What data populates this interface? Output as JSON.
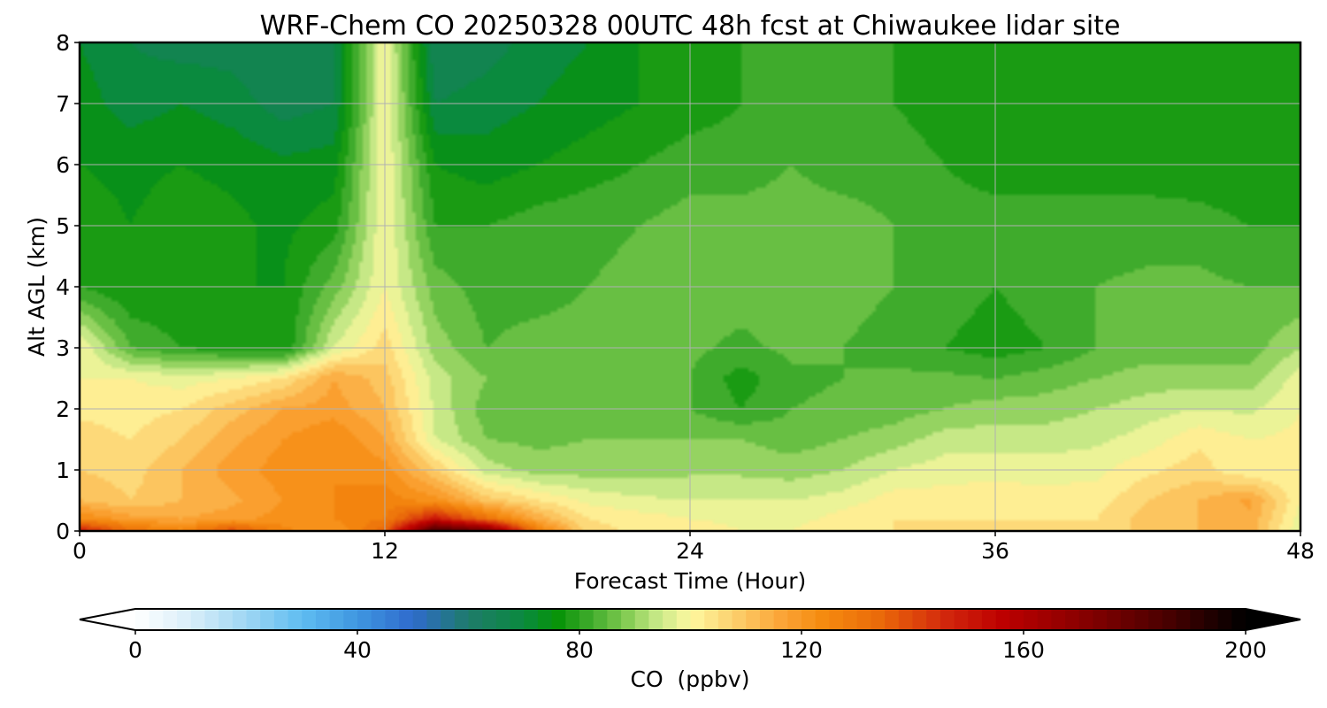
{
  "chart_data": {
    "type": "heatmap",
    "subtype": "filled contour time-height cross section",
    "title": "WRF-Chem CO  20250328 00UTC 48h fcst at Chiwaukee lidar site",
    "xlabel": "Forecast Time (Hour)",
    "ylabel": "Alt AGL (km)",
    "xlim": [
      0,
      48
    ],
    "ylim": [
      0,
      8
    ],
    "xticks": [
      "0",
      "12",
      "24",
      "36",
      "48"
    ],
    "yticks": [
      "0",
      "1",
      "2",
      "3",
      "4",
      "5",
      "6",
      "7",
      "8"
    ],
    "grid": true,
    "colorbar": {
      "label": "CO  (ppbv)",
      "range": [
        0,
        200
      ],
      "ticks": [
        "0",
        "40",
        "80",
        "120",
        "160",
        "200"
      ],
      "extend": "both",
      "colors": [
        {
          "value": 0,
          "color": "#ffffff"
        },
        {
          "value": 10,
          "color": "#d8eef9"
        },
        {
          "value": 20,
          "color": "#9fd6f3"
        },
        {
          "value": 30,
          "color": "#5fbdf1"
        },
        {
          "value": 40,
          "color": "#3f96e0"
        },
        {
          "value": 50,
          "color": "#2f6bcc"
        },
        {
          "value": 60,
          "color": "#1e7b6a"
        },
        {
          "value": 70,
          "color": "#0a8a3e"
        },
        {
          "value": 76,
          "color": "#079307"
        },
        {
          "value": 82,
          "color": "#3fab2c"
        },
        {
          "value": 88,
          "color": "#7dc94e"
        },
        {
          "value": 94,
          "color": "#c6e886"
        },
        {
          "value": 100,
          "color": "#fef8a0"
        },
        {
          "value": 108,
          "color": "#fccf6c"
        },
        {
          "value": 116,
          "color": "#fba639"
        },
        {
          "value": 124,
          "color": "#f58a0f"
        },
        {
          "value": 134,
          "color": "#ea6a0a"
        },
        {
          "value": 146,
          "color": "#d2270c"
        },
        {
          "value": 156,
          "color": "#bd0000"
        },
        {
          "value": 170,
          "color": "#8a0000"
        },
        {
          "value": 185,
          "color": "#4d0000"
        },
        {
          "value": 200,
          "color": "#000000"
        }
      ]
    },
    "x_hours": [
      0,
      2,
      4,
      6,
      8,
      10,
      12,
      14,
      16,
      18,
      20,
      22,
      24,
      26,
      28,
      30,
      32,
      34,
      36,
      38,
      40,
      42,
      44,
      46,
      48
    ],
    "y_km": [
      0,
      0.2,
      0.5,
      1,
      1.5,
      2,
      2.5,
      3,
      4,
      5,
      6,
      7,
      8
    ],
    "values_ppbv": [
      [
        150,
        132,
        125,
        140,
        125,
        120,
        135,
        190,
        178,
        128,
        106,
        103,
        102,
        100,
        100,
        104,
        104,
        104,
        104,
        104,
        104,
        110,
        112,
        115,
        96
      ],
      [
        124,
        118,
        116,
        118,
        122,
        124,
        128,
        150,
        132,
        115,
        104,
        102,
        100,
        99,
        98,
        102,
        104,
        104,
        104,
        104,
        104,
        110,
        112,
        115,
        98
      ],
      [
        112,
        108,
        112,
        115,
        120,
        124,
        126,
        122,
        110,
        104,
        99,
        97,
        96,
        96,
        96,
        98,
        102,
        102,
        102,
        102,
        102,
        108,
        112,
        117,
        100
      ],
      [
        108,
        106,
        112,
        118,
        122,
        124,
        122,
        108,
        94,
        90,
        90,
        90,
        91,
        91,
        90,
        92,
        96,
        98,
        99,
        98,
        99,
        103,
        106,
        100,
        100
      ],
      [
        106,
        104,
        108,
        115,
        120,
        124,
        116,
        96,
        88,
        87,
        88,
        88,
        88,
        88,
        86,
        88,
        90,
        94,
        94,
        94,
        95,
        98,
        103,
        100,
        101
      ],
      [
        103,
        102,
        104,
        110,
        116,
        118,
        112,
        95,
        86,
        85,
        88,
        86,
        84,
        80,
        84,
        85,
        86,
        88,
        90,
        90,
        92,
        94,
        96,
        95,
        100
      ],
      [
        100,
        100,
        98,
        100,
        104,
        116,
        110,
        94,
        88,
        88,
        88,
        86,
        84,
        78,
        83,
        84,
        85,
        85,
        84,
        86,
        88,
        90,
        90,
        90,
        98
      ],
      [
        100,
        84,
        80,
        78,
        76,
        96,
        106,
        90,
        84,
        86,
        86,
        85,
        85,
        83,
        85,
        84,
        82,
        80,
        78,
        80,
        84,
        86,
        86,
        86,
        92
      ],
      [
        80,
        76,
        76,
        76,
        76,
        86,
        100,
        86,
        82,
        82,
        84,
        85,
        86,
        86,
        86,
        86,
        84,
        82,
        80,
        82,
        84,
        85,
        85,
        84,
        84
      ],
      [
        78,
        76,
        78,
        77,
        75,
        78,
        100,
        80,
        80,
        82,
        83,
        84,
        86,
        86,
        86,
        86,
        84,
        82,
        82,
        82,
        82,
        82,
        82,
        80,
        80
      ],
      [
        76,
        75,
        76,
        75,
        73,
        74,
        100,
        76,
        74,
        76,
        78,
        80,
        82,
        82,
        84,
        82,
        82,
        80,
        78,
        78,
        78,
        78,
        77,
        76,
        76
      ],
      [
        74,
        70,
        72,
        70,
        66,
        68,
        100,
        68,
        70,
        72,
        74,
        76,
        78,
        80,
        80,
        80,
        80,
        78,
        76,
        76,
        76,
        76,
        76,
        76,
        76
      ],
      [
        72,
        68,
        66,
        66,
        64,
        68,
        100,
        64,
        66,
        70,
        72,
        76,
        78,
        80,
        80,
        80,
        80,
        78,
        76,
        76,
        76,
        76,
        76,
        76,
        76
      ]
    ]
  }
}
